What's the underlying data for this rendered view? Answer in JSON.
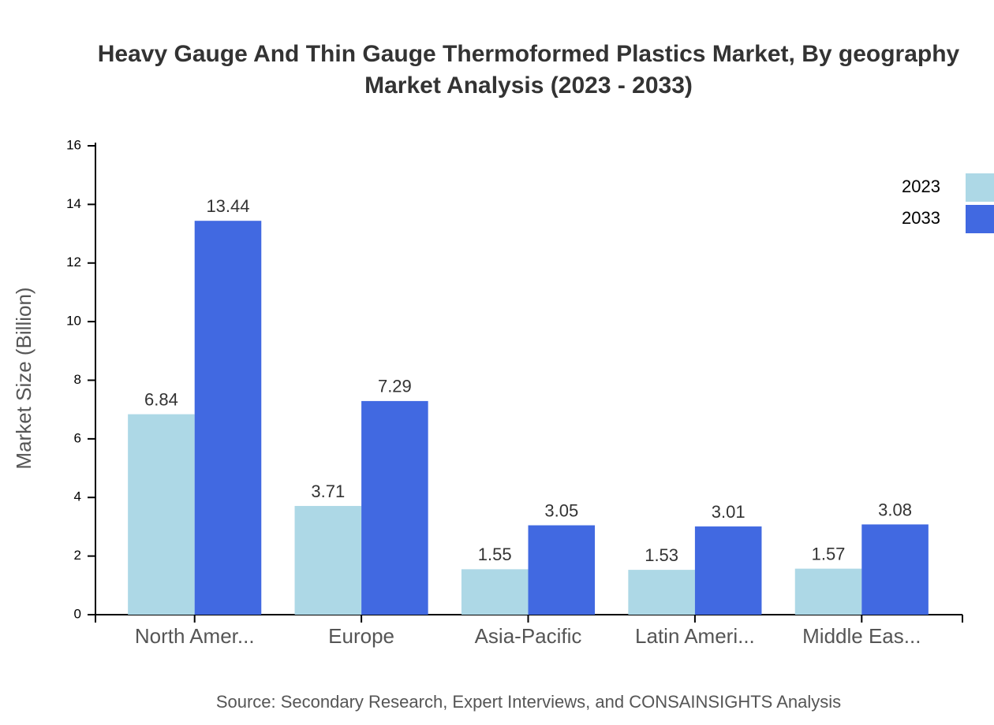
{
  "chart_data": {
    "type": "bar",
    "title": [
      "Heavy Gauge And Thin Gauge Thermoformed Plastics Market, By geography",
      "Market Analysis (2023 - 2033)"
    ],
    "y_label": "Market Size (Billion)",
    "source": "Source: Secondary Research, Expert Interviews, and CONSAINSIGHTS Analysis",
    "categories": [
      "North Amer...",
      "Europe",
      "Asia-Pacific",
      "Latin Ameri...",
      "Middle Eas..."
    ],
    "series": [
      {
        "name": "2023",
        "color": "#add8e6",
        "values": [
          6.84,
          3.71,
          1.55,
          1.53,
          1.57
        ]
      },
      {
        "name": "2033",
        "color": "#4169e1",
        "values": [
          13.44,
          7.29,
          3.05,
          3.01,
          3.08
        ]
      }
    ],
    "ylim": [
      0,
      16
    ],
    "yticks": [
      0,
      2,
      4,
      6,
      8,
      10,
      12,
      14,
      16
    ]
  }
}
